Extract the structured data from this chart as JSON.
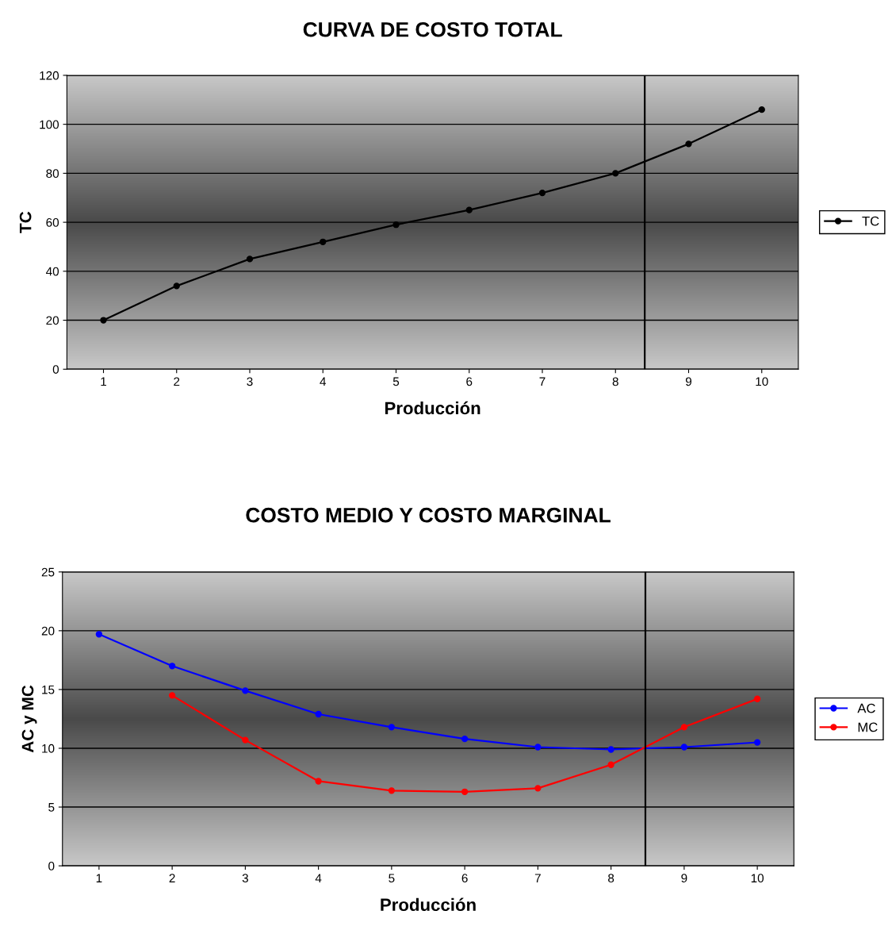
{
  "chart_data": [
    {
      "type": "line",
      "title": "CURVA DE COSTO TOTAL",
      "xlabel": "Producción",
      "ylabel": "TC",
      "x": [
        1,
        2,
        3,
        4,
        5,
        6,
        7,
        8,
        9,
        10
      ],
      "xlim": [
        0.5,
        10.5
      ],
      "xticks": [
        1,
        2,
        3,
        4,
        5,
        6,
        7,
        8,
        9,
        10
      ],
      "ylim": [
        0,
        120
      ],
      "yticks": [
        0,
        20,
        40,
        60,
        80,
        100,
        120
      ],
      "series": [
        {
          "name": "TC",
          "color": "#000000",
          "values": [
            20,
            34,
            45,
            52,
            59,
            65,
            72,
            80,
            92,
            106
          ]
        }
      ],
      "ref_lines": [
        {
          "axis": "x",
          "value": 8.4,
          "color": "#000000"
        }
      ],
      "grid": "y",
      "legend": "right",
      "marker": "circle",
      "line_style": "solid"
    },
    {
      "type": "line",
      "title": "COSTO MEDIO Y COSTO MARGINAL",
      "xlabel": "Producción",
      "ylabel": "AC y MC",
      "x": [
        1,
        2,
        3,
        4,
        5,
        6,
        7,
        8,
        9,
        10
      ],
      "xlim": [
        0.5,
        10.5
      ],
      "xticks": [
        1,
        2,
        3,
        4,
        5,
        6,
        7,
        8,
        9,
        10
      ],
      "ylim": [
        0,
        25
      ],
      "yticks": [
        0,
        5,
        10,
        15,
        20,
        25
      ],
      "series": [
        {
          "name": "AC",
          "color": "#0000ff",
          "values": [
            19.7,
            17.0,
            14.9,
            12.9,
            11.8,
            10.8,
            10.1,
            9.9,
            10.1,
            10.5
          ]
        },
        {
          "name": "MC",
          "color": "#ff0000",
          "values": [
            null,
            14.5,
            10.7,
            7.2,
            6.4,
            6.3,
            6.6,
            8.6,
            11.8,
            14.2
          ]
        }
      ],
      "ref_lines": [
        {
          "axis": "x",
          "value": 8.47,
          "color": "#000000"
        }
      ],
      "grid": "y",
      "legend": "right",
      "marker": "circle",
      "line_style": "solid"
    }
  ]
}
